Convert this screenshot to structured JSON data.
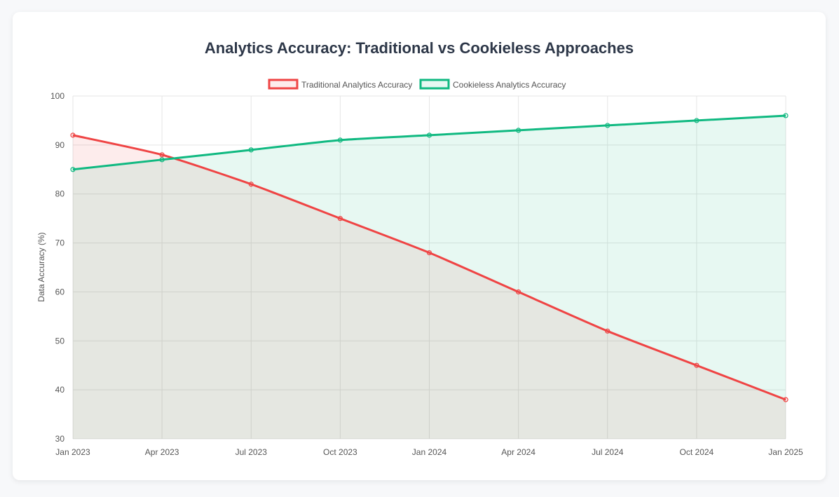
{
  "chart_data": {
    "type": "line",
    "title": "Analytics Accuracy: Traditional vs Cookieless Approaches",
    "xlabel": "",
    "ylabel": "Data Accuracy (%)",
    "categories": [
      "Jan 2023",
      "Apr 2023",
      "Jul 2023",
      "Oct 2023",
      "Jan 2024",
      "Apr 2024",
      "Jul 2024",
      "Oct 2024",
      "Jan 2025"
    ],
    "ylim": [
      30,
      100
    ],
    "yticks": [
      30,
      40,
      50,
      60,
      70,
      80,
      90,
      100
    ],
    "grid": true,
    "legend_position": "top",
    "series": [
      {
        "name": "Traditional Analytics Accuracy",
        "color": "#ef4444",
        "fill": "rgba(239,68,68,0.1)",
        "values": [
          92,
          88,
          82,
          75,
          68,
          60,
          52,
          45,
          38
        ]
      },
      {
        "name": "Cookieless Analytics Accuracy",
        "color": "#10b981",
        "fill": "rgba(16,185,129,0.1)",
        "values": [
          85,
          87,
          89,
          91,
          92,
          93,
          94,
          95,
          96
        ]
      }
    ]
  }
}
